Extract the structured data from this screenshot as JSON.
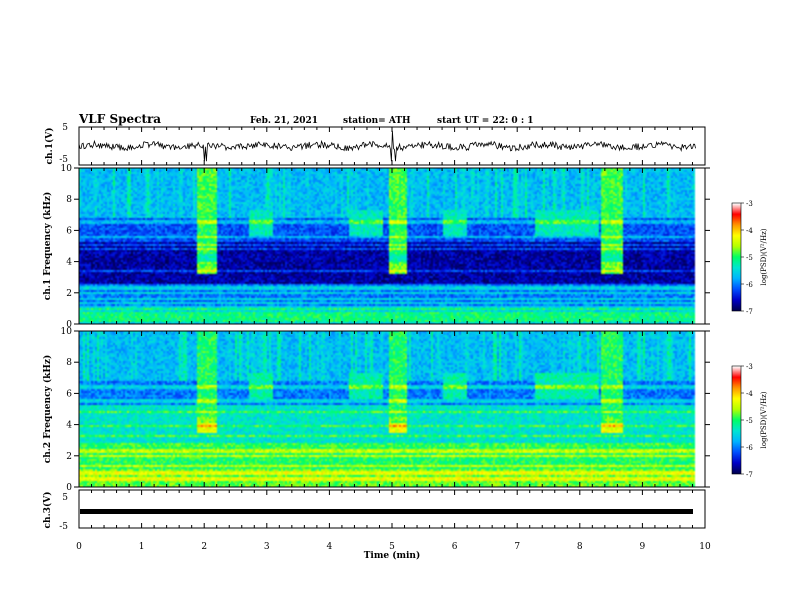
{
  "header": {
    "title": "VLF Spectra",
    "date": "Feb. 21, 2021",
    "station": "station= ATH",
    "start": "start  UT =   22: 0  : 1"
  },
  "chart_data": [
    {
      "type": "line",
      "name": "channel-1-waveform",
      "ylabel": "ch.1(V)",
      "ylim": [
        -5,
        5
      ],
      "yticks": [
        "5",
        "-5"
      ],
      "x_range_min": [
        0,
        9.85
      ],
      "approx_level_V": 0.0,
      "approx_noise_V": 0.9,
      "spikes_min": [
        2.0,
        2.03,
        5.0,
        5.05
      ]
    },
    {
      "type": "heatmap",
      "name": "channel-1-spectrogram",
      "ylabel": "ch.1 Frequency (kHz)",
      "xlim": [
        0,
        10
      ],
      "ylim": [
        0,
        10
      ],
      "yticks": [
        "0",
        "2",
        "4",
        "6",
        "8",
        "10"
      ],
      "data_x_end_min": 9.85,
      "colorbar": {
        "label": "log(PSD)(V²/Hz)",
        "range": [
          -7,
          -3
        ],
        "ticks": [
          "-3",
          "-4",
          "-5",
          "-6",
          "-7"
        ],
        "colors": [
          "#000050",
          "#0000c8",
          "#0050ff",
          "#00b4ff",
          "#00e6d2",
          "#00ff64",
          "#b4ff00",
          "#ffff00",
          "#ff9600",
          "#ff0000",
          "#ffffff"
        ]
      },
      "bursts_min": [
        [
          1.9,
          2.2
        ],
        [
          4.95,
          5.25
        ],
        [
          8.35,
          8.7
        ]
      ],
      "hiss_patches_min": [
        [
          2.7,
          3.1
        ],
        [
          4.3,
          4.85
        ],
        [
          5.8,
          6.2
        ],
        [
          7.3,
          8.3
        ]
      ],
      "band_lines_kHz": [
        0.25,
        0.5,
        0.75,
        1.0,
        1.3,
        1.6,
        2.0,
        2.3,
        3.35,
        4.8,
        5.1,
        5.6,
        6.45,
        6.6
      ]
    },
    {
      "type": "heatmap",
      "name": "channel-2-spectrogram",
      "ylabel": "ch.2 Frequency (kHz)",
      "xlim": [
        0,
        10
      ],
      "ylim": [
        0,
        10
      ],
      "yticks": [
        "0",
        "2",
        "4",
        "6",
        "8",
        "10"
      ],
      "data_x_end_min": 9.85,
      "colorbar": {
        "label": "log(PSD)(V²/Hz)",
        "range": [
          -7,
          -3
        ],
        "ticks": [
          "-3",
          "-4",
          "-5",
          "-6",
          "-7"
        ]
      },
      "bursts_min": [
        [
          1.9,
          2.2
        ],
        [
          4.95,
          5.25
        ],
        [
          8.35,
          8.7
        ]
      ],
      "hiss_patches_min": [
        [
          2.7,
          3.1
        ],
        [
          4.3,
          4.85
        ],
        [
          5.8,
          6.2
        ],
        [
          7.3,
          8.3
        ]
      ],
      "band_lines_kHz": [
        0.5,
        0.9,
        1.3,
        2.0,
        2.3,
        2.7,
        3.3,
        3.9,
        4.8,
        5.5,
        6.4
      ]
    },
    {
      "type": "line",
      "name": "channel-3-waveform",
      "ylabel": "ch.3(V)",
      "ylim": [
        -5,
        5
      ],
      "yticks": [
        "5",
        "-5"
      ],
      "x_range_min": [
        0,
        9.85
      ],
      "approx_level_V": 0.0
    }
  ],
  "xaxis": {
    "label": "Time  (min)",
    "ticks": [
      "0",
      "1",
      "2",
      "3",
      "4",
      "5",
      "6",
      "7",
      "8",
      "9",
      "10"
    ]
  }
}
